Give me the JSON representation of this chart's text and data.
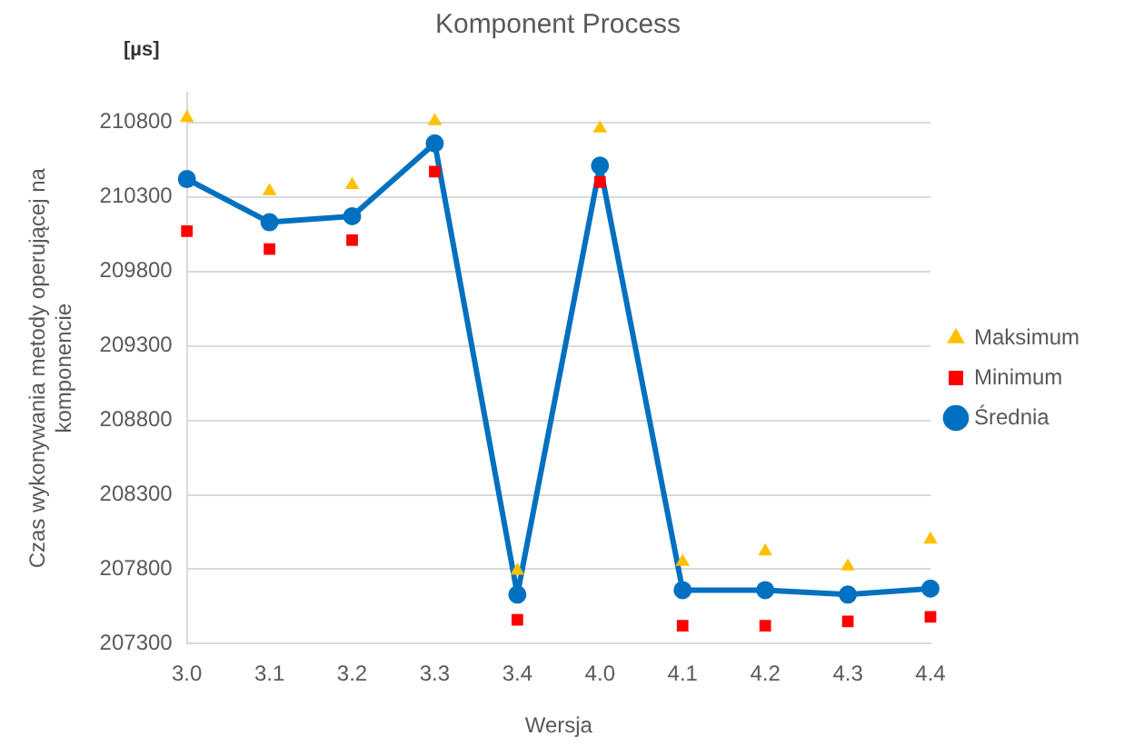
{
  "chart_data": {
    "type": "line",
    "title": "Komponent Process",
    "xlabel": "Wersja",
    "ylabel": "Czas wykonywania metody operującej na komponencie",
    "annotations": [
      "[µs]"
    ],
    "categories": [
      "3.0",
      "3.1",
      "3.2",
      "3.3",
      "3.4",
      "4.0",
      "4.1",
      "4.2",
      "4.3",
      "4.4"
    ],
    "ylim": [
      207300,
      211000
    ],
    "yticks": [
      207300,
      207800,
      208300,
      208800,
      209300,
      209800,
      210300,
      210800
    ],
    "grid": "y",
    "legend": "right",
    "series": [
      {
        "name": "Maksimum",
        "type": "scatter",
        "marker": "triangle",
        "color": "#ffc000",
        "values": [
          210830,
          210340,
          210380,
          210810,
          207790,
          210760,
          207850,
          207920,
          207820,
          208000
        ]
      },
      {
        "name": "Średnia",
        "marker": "circle",
        "color": "#0070c0",
        "values": [
          210420,
          210130,
          210170,
          210660,
          207630,
          210510,
          207660,
          207660,
          207630,
          207670
        ]
      },
      {
        "name": "Minimum",
        "type": "scatter",
        "marker": "square",
        "color": "#ff0000",
        "values": [
          210070,
          209950,
          210010,
          210470,
          207460,
          210400,
          207420,
          207420,
          207450,
          207480
        ]
      }
    ]
  }
}
